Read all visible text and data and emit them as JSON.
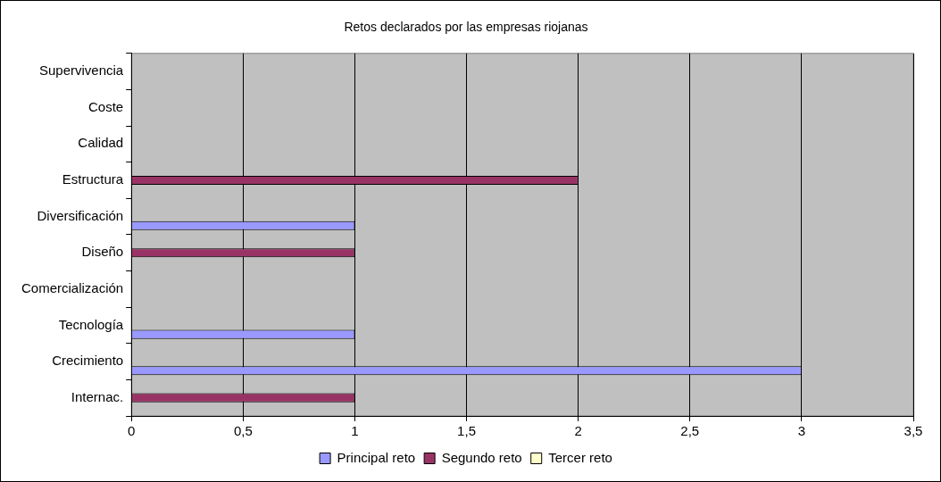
{
  "chart_data": {
    "type": "bar",
    "orientation": "horizontal",
    "title": "Retos declarados por las empresas riojanas",
    "categories": [
      "Supervivencia",
      "Coste",
      "Calidad",
      "Estructura",
      "Diversificación",
      "Diseño",
      "Comercialización",
      "Tecnología",
      "Crecimiento",
      "Internac."
    ],
    "series": [
      {
        "name": "Principal reto",
        "color": "#9999ff",
        "values": [
          0,
          0,
          0,
          0,
          1,
          0,
          0,
          1,
          3,
          0
        ]
      },
      {
        "name": "Segundo reto",
        "color": "#993366",
        "values": [
          0,
          0,
          0,
          2,
          0,
          1,
          0,
          0,
          0,
          1
        ]
      },
      {
        "name": "Tercer reto",
        "color": "#ffffcc",
        "values": [
          0,
          0,
          0,
          0,
          0,
          0,
          0,
          0,
          0,
          0
        ]
      }
    ],
    "xlim": [
      0,
      3.5
    ],
    "xticks": [
      0,
      {
        "value": 0.5,
        "label": "0,5"
      },
      1,
      {
        "value": 1.5,
        "label": "1,5"
      },
      2,
      {
        "value": 2.5,
        "label": "2,5"
      },
      3,
      {
        "value": 3.5,
        "label": "3,5"
      }
    ],
    "grid": "x",
    "legend": "bottom"
  }
}
